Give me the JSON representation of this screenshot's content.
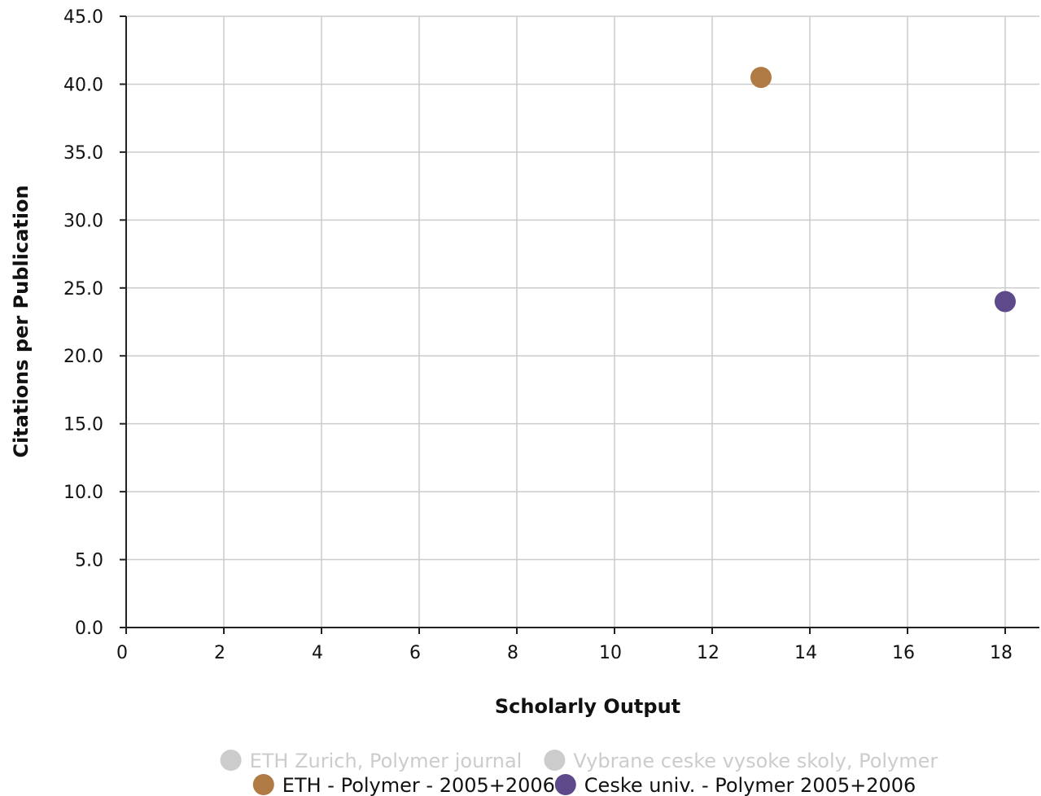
{
  "chart_data": {
    "type": "scatter",
    "xlabel": "Scholarly Output",
    "ylabel": "Citations per Publication",
    "xlim": [
      0,
      18.7
    ],
    "ylim": [
      0,
      45
    ],
    "x_ticks": [
      "0",
      "2",
      "4",
      "6",
      "8",
      "10",
      "12",
      "14",
      "16",
      "18"
    ],
    "y_ticks": [
      "0.0",
      "5.0",
      "10.0",
      "15.0",
      "20.0",
      "25.0",
      "30.0",
      "35.0",
      "40.0",
      "45.0"
    ],
    "grid": true,
    "legend_position": "bottom",
    "series": [
      {
        "name": "ETH Zurich, Polymer journal",
        "color": "#cccccc",
        "visible": false,
        "points": []
      },
      {
        "name": "Vybrane ceske vysoke skoly, Polymer",
        "color": "#cccccc",
        "visible": false,
        "points": []
      },
      {
        "name": "ETH - Polymer - 2005+2006",
        "color": "#b07a45",
        "visible": true,
        "points": [
          {
            "x": 13,
            "y": 40.5
          }
        ]
      },
      {
        "name": "Ceske univ. - Polymer 2005+2006",
        "color": "#5e4a8b",
        "visible": true,
        "points": [
          {
            "x": 18,
            "y": 24
          }
        ]
      }
    ]
  }
}
